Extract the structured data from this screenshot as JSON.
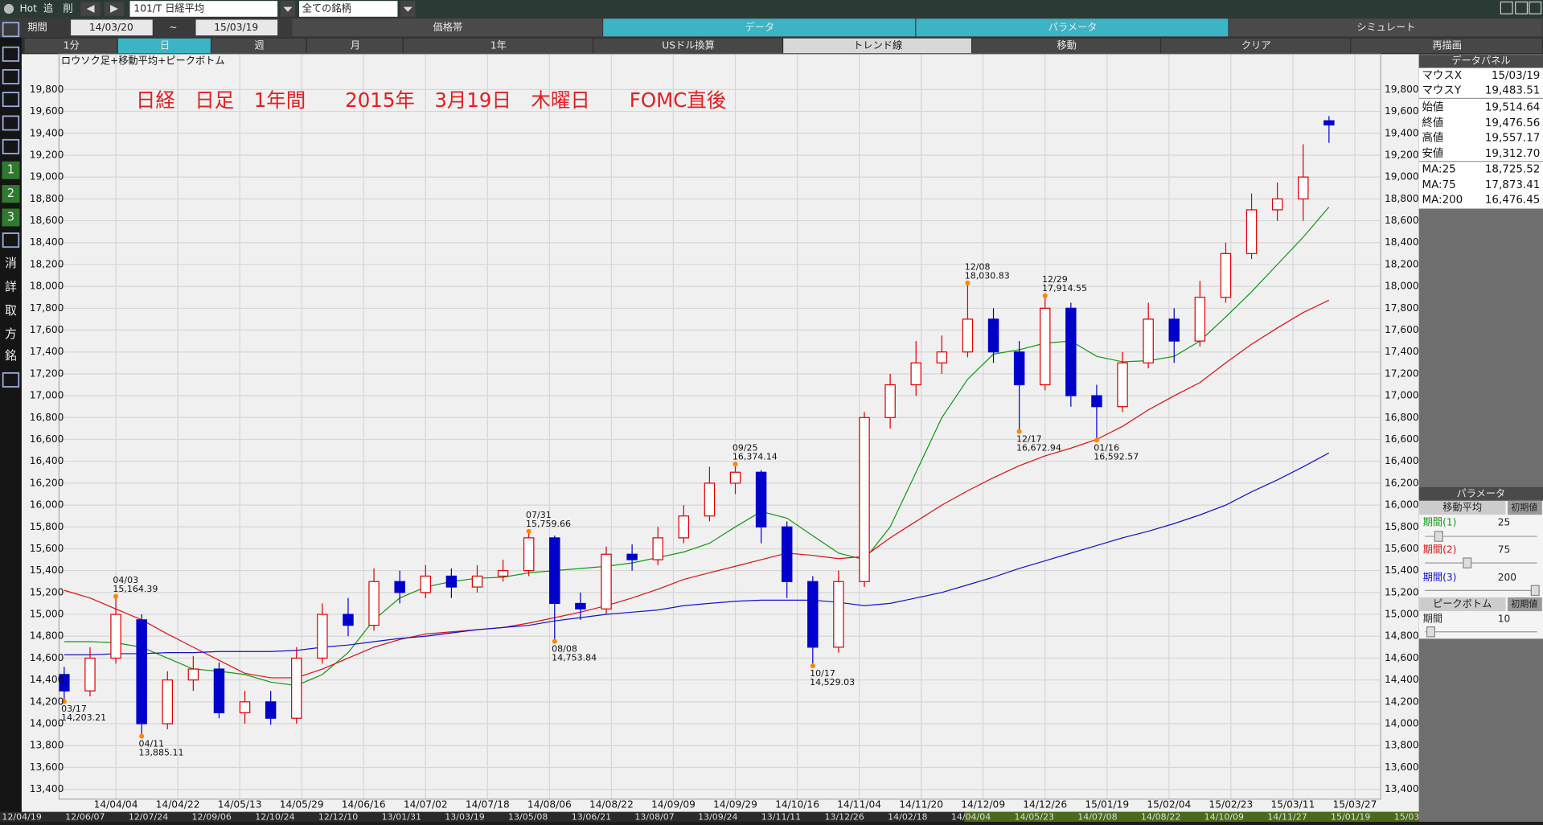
{
  "toolbar": {
    "hot": "Hot",
    "add": "追",
    "delete": "削",
    "symbol": "101/T 日経平均",
    "universe": "全ての銘柄",
    "period_label": "期間",
    "date_from": "14/03/20",
    "tilde": "~",
    "date_to": "15/03/19",
    "tabs": [
      "価格帯",
      "データ",
      "パラメータ",
      "シミュレート"
    ],
    "buttons": [
      "1分",
      "日",
      "週",
      "月",
      "1年",
      "USドル換算",
      "トレンド線",
      "移動",
      "クリア",
      "再描画"
    ]
  },
  "sidebar": [
    "1",
    "2",
    "3",
    "消",
    "詳",
    "取",
    "方",
    "銘"
  ],
  "data_panel": {
    "title": "データパネル",
    "rows": [
      [
        "マウスX",
        "15/03/19"
      ],
      [
        "マウスY",
        "19,483.51"
      ],
      [
        "始値",
        "19,514.64"
      ],
      [
        "終値",
        "19,476.56"
      ],
      [
        "高値",
        "19,557.17"
      ],
      [
        "安値",
        "19,312.70"
      ],
      [
        "MA:25",
        "18,725.52"
      ],
      [
        "MA:75",
        "17,873.41"
      ],
      [
        "MA:200",
        "16,476.45"
      ]
    ]
  },
  "param_panel": {
    "title": "パラメータ",
    "moving_average": "移動平均",
    "reset": "初期値",
    "period1": "期間(1)",
    "value1": "25",
    "period2": "期間(2)",
    "value2": "75",
    "period3": "期間(3)",
    "value3": "200",
    "peak_bottom": "ピークボトム",
    "reset2": "初期値",
    "period": "期間",
    "value4": "10"
  },
  "timeline": [
    "12/04/19",
    "12/06/07",
    "12/07/24",
    "12/09/06",
    "12/10/24",
    "12/12/10",
    "13/01/31",
    "13/03/19",
    "13/05/08",
    "13/06/21",
    "13/08/07",
    "13/09/24",
    "13/11/11",
    "13/12/26",
    "14/02/18",
    "14/04/04",
    "14/05/23",
    "14/07/08",
    "14/08/22",
    "14/10/09",
    "14/11/27",
    "15/01/19",
    "15/03/05"
  ],
  "chart_data": {
    "type": "candlestick",
    "title": "ロウソク足+移動平均+ピークボトム",
    "annotation": "日経　日足　1年間　　2015年　3月19日　木曜日　　FOMC直後",
    "up_color": "#e00000",
    "down_color": "#0000cc",
    "grid": true,
    "x": [
      0,
      5,
      10,
      15,
      20,
      25,
      30,
      35,
      40,
      45,
      50,
      55,
      60,
      65,
      70,
      75,
      80,
      85,
      90,
      95,
      100,
      105,
      110,
      115,
      120,
      125,
      130,
      135,
      140,
      145,
      150,
      155,
      160,
      165,
      170,
      175,
      180,
      185,
      190,
      195,
      200,
      205,
      210,
      215,
      220,
      225,
      230,
      235,
      240,
      245
    ],
    "open": [
      14450,
      14300,
      14600,
      14950,
      14000,
      14400,
      14500,
      14100,
      14200,
      14050,
      14600,
      15000,
      14900,
      15300,
      15200,
      15350,
      15250,
      15350,
      15400,
      15700,
      15100,
      15050,
      15550,
      15500,
      15700,
      15900,
      16200,
      16300,
      15800,
      15300,
      14700,
      15300,
      16800,
      17100,
      17300,
      17400,
      17700,
      17400,
      17100,
      17800,
      17000,
      16900,
      17300,
      17700,
      17500,
      17900,
      18300,
      18700,
      18800,
      19514.64
    ],
    "high": [
      14520,
      14700,
      15164.39,
      15000,
      14480,
      14620,
      14560,
      14300,
      14300,
      14700,
      15100,
      15150,
      15420,
      15400,
      15450,
      15420,
      15450,
      15500,
      15759.66,
      15720,
      15200,
      15620,
      15640,
      15800,
      16000,
      16350,
      16374.14,
      16320,
      15850,
      15350,
      15400,
      16850,
      17200,
      17500,
      17550,
      18030.83,
      17800,
      17500,
      17914.55,
      17850,
      17100,
      17400,
      17850,
      17800,
      18050,
      18400,
      18850,
      18950,
      19300,
      19557.17
    ],
    "low": [
      14203.21,
      14250,
      14550,
      13885.11,
      13950,
      14300,
      14050,
      14000,
      13990,
      14000,
      14550,
      14800,
      14850,
      15100,
      15150,
      15150,
      15200,
      15300,
      15350,
      14753.84,
      14950,
      15000,
      15400,
      15450,
      15650,
      15850,
      16100,
      15650,
      15150,
      14529.03,
      14650,
      15250,
      16700,
      17000,
      17200,
      17350,
      17300,
      16672.94,
      17050,
      16900,
      16592.57,
      16850,
      17250,
      17300,
      17450,
      17850,
      18250,
      18600,
      18600,
      19312.7
    ],
    "close": [
      14300,
      14600,
      15000,
      14000,
      14400,
      14500,
      14100,
      14200,
      14050,
      14600,
      15000,
      14900,
      15300,
      15200,
      15350,
      15250,
      15350,
      15400,
      15700,
      15100,
      15050,
      15550,
      15500,
      15700,
      15900,
      16200,
      16300,
      15800,
      15300,
      14700,
      15300,
      16800,
      17100,
      17300,
      17400,
      17700,
      17400,
      17100,
      17800,
      17000,
      16900,
      17300,
      17700,
      17500,
      17900,
      18300,
      18700,
      18800,
      19000,
      19476.56
    ],
    "series": [
      {
        "color": "#119911",
        "values": [
          14750,
          14750,
          14740,
          14700,
          14600,
          14500,
          14480,
          14450,
          14380,
          14350,
          14450,
          14650,
          14950,
          15150,
          15250,
          15300,
          15330,
          15340,
          15380,
          15400,
          15420,
          15440,
          15470,
          15520,
          15570,
          15650,
          15800,
          15940,
          15880,
          15720,
          15560,
          15500,
          15800,
          16300,
          16800,
          17150,
          17380,
          17420,
          17480,
          17500,
          17360,
          17310,
          17320,
          17360,
          17500,
          17720,
          17950,
          18200,
          18450,
          18725.52
        ]
      },
      {
        "color": "#dd1111",
        "values": [
          15220,
          15150,
          15050,
          14950,
          14820,
          14700,
          14580,
          14460,
          14420,
          14420,
          14500,
          14600,
          14700,
          14770,
          14820,
          14840,
          14860,
          14880,
          14920,
          14970,
          15020,
          15080,
          15150,
          15230,
          15320,
          15380,
          15440,
          15500,
          15560,
          15540,
          15510,
          15530,
          15700,
          15850,
          16000,
          16130,
          16250,
          16360,
          16450,
          16520,
          16600,
          16720,
          16870,
          17000,
          17120,
          17300,
          17470,
          17620,
          17760,
          17873.41
        ]
      },
      {
        "color": "#1111cc",
        "values": [
          14630,
          14630,
          14640,
          14640,
          14650,
          14650,
          14660,
          14660,
          14660,
          14670,
          14700,
          14720,
          14750,
          14780,
          14800,
          14830,
          14860,
          14880,
          14900,
          14940,
          14970,
          15000,
          15020,
          15040,
          15080,
          15100,
          15120,
          15130,
          15130,
          15130,
          15110,
          15080,
          15100,
          15150,
          15200,
          15270,
          15340,
          15420,
          15490,
          15560,
          15630,
          15700,
          15760,
          15830,
          15910,
          16000,
          16120,
          16230,
          16350,
          16476.45
        ]
      }
    ],
    "annotations": [
      {
        "x": 0,
        "date": "03/17",
        "value": 14203.21,
        "value_label": "14,203.21"
      },
      {
        "x": 10,
        "date": "04/03",
        "value": 15164.39,
        "value_label": "15,164.39"
      },
      {
        "x": 15,
        "date": "04/11",
        "value": 13885.11,
        "value_label": "13,885.11"
      },
      {
        "x": 90,
        "date": "07/31",
        "value": 15759.66,
        "value_label": "15,759.66"
      },
      {
        "x": 95,
        "date": "08/08",
        "value": 14753.84,
        "value_label": "14,753.84"
      },
      {
        "x": 130,
        "date": "09/25",
        "value": 16374.14,
        "value_label": "16,374.14"
      },
      {
        "x": 145,
        "date": "10/17",
        "value": 14529.03,
        "value_label": "14,529.03"
      },
      {
        "x": 175,
        "date": "12/08",
        "value": 18030.83,
        "value_label": "18,030.83"
      },
      {
        "x": 185,
        "date": "12/17",
        "value": 16672.94,
        "value_label": "16,672.94"
      },
      {
        "x": 190,
        "date": "12/29",
        "value": 17914.55,
        "value_label": "17,914.55"
      },
      {
        "x": 200,
        "date": "01/16",
        "value": 16592.57,
        "value_label": "16,592.57"
      }
    ],
    "xlim": [
      -1,
      255
    ],
    "xticks": [
      {
        "value": 10,
        "label": "14/04/04"
      },
      {
        "value": 22,
        "label": "14/04/22"
      },
      {
        "value": 34,
        "label": "14/05/13"
      },
      {
        "value": 46,
        "label": "14/05/29"
      },
      {
        "value": 58,
        "label": "14/06/16"
      },
      {
        "value": 70,
        "label": "14/07/02"
      },
      {
        "value": 82,
        "label": "14/07/18"
      },
      {
        "value": 94,
        "label": "14/08/06"
      },
      {
        "value": 106,
        "label": "14/08/22"
      },
      {
        "value": 118,
        "label": "14/09/09"
      },
      {
        "value": 130,
        "label": "14/09/29"
      },
      {
        "value": 142,
        "label": "14/10/16"
      },
      {
        "value": 154,
        "label": "14/11/04"
      },
      {
        "value": 166,
        "label": "14/11/20"
      },
      {
        "value": 178,
        "label": "14/12/09"
      },
      {
        "value": 190,
        "label": "14/12/26"
      },
      {
        "value": 202,
        "label": "15/01/19"
      },
      {
        "value": 214,
        "label": "15/02/04"
      },
      {
        "value": 226,
        "label": "15/02/23"
      },
      {
        "value": 238,
        "label": "15/03/11"
      },
      {
        "value": 250,
        "label": "15/03/27"
      }
    ],
    "ylim": [
      13310,
      20124
    ],
    "yticks": [
      {
        "value": 13400,
        "label": "13,400"
      },
      {
        "value": 13600,
        "label": "13,600"
      },
      {
        "value": 13800,
        "label": "13,800"
      },
      {
        "value": 14000,
        "label": "14,000"
      },
      {
        "value": 14200,
        "label": "14,200"
      },
      {
        "value": 14400,
        "label": "14,400"
      },
      {
        "value": 14600,
        "label": "14,600"
      },
      {
        "value": 14800,
        "label": "14,800"
      },
      {
        "value": 15000,
        "label": "15,000"
      },
      {
        "value": 15200,
        "label": "15,200"
      },
      {
        "value": 15400,
        "label": "15,400"
      },
      {
        "value": 15600,
        "label": "15,600"
      },
      {
        "value": 15800,
        "label": "15,800"
      },
      {
        "value": 16000,
        "label": "16,000"
      },
      {
        "value": 16200,
        "label": "16,200"
      },
      {
        "value": 16400,
        "label": "16,400"
      },
      {
        "value": 16600,
        "label": "16,600"
      },
      {
        "value": 16800,
        "label": "16,800"
      },
      {
        "value": 17000,
        "label": "17,000"
      },
      {
        "value": 17200,
        "label": "17,200"
      },
      {
        "value": 17400,
        "label": "17,400"
      },
      {
        "value": 17600,
        "label": "17,600"
      },
      {
        "value": 17800,
        "label": "17,800"
      },
      {
        "value": 18000,
        "label": "18,000"
      },
      {
        "value": 18200,
        "label": "18,200"
      },
      {
        "value": 18400,
        "label": "18,400"
      },
      {
        "value": 18600,
        "label": "18,600"
      },
      {
        "value": 18800,
        "label": "18,800"
      },
      {
        "value": 19000,
        "label": "19,000"
      },
      {
        "value": 19200,
        "label": "19,200"
      },
      {
        "value": 19400,
        "label": "19,400"
      },
      {
        "value": 19600,
        "label": "19,600"
      },
      {
        "value": 19800,
        "label": "19,800"
      }
    ]
  }
}
